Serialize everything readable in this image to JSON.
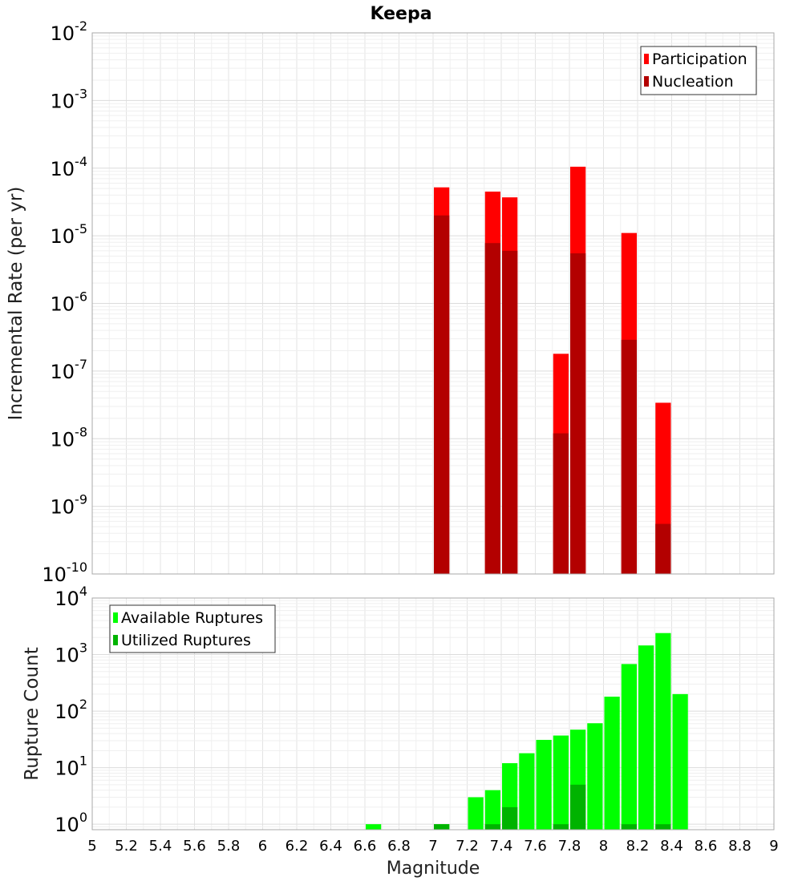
{
  "chart_data": [
    {
      "type": "bar",
      "title": "Keepa",
      "xlabel": "",
      "ylabel": "Incremental Rate (per yr)",
      "yscale": "log",
      "ylim": [
        1e-10,
        0.01
      ],
      "xlim": [
        5,
        9
      ],
      "y_ticks": [
        {
          "base": "10",
          "exp": "-10",
          "value": 1e-10
        },
        {
          "base": "10",
          "exp": "-9",
          "value": 1e-09
        },
        {
          "base": "10",
          "exp": "-8",
          "value": 1e-08
        },
        {
          "base": "10",
          "exp": "-7",
          "value": 1e-07
        },
        {
          "base": "10",
          "exp": "-6",
          "value": 1e-06
        },
        {
          "base": "10",
          "exp": "-5",
          "value": 1e-05
        },
        {
          "base": "10",
          "exp": "-4",
          "value": 0.0001
        },
        {
          "base": "10",
          "exp": "-3",
          "value": 0.001
        },
        {
          "base": "10",
          "exp": "-2",
          "value": 0.01
        }
      ],
      "legend_position": "top-right",
      "grid": true,
      "bin_width": 0.1,
      "series": [
        {
          "name": "Participation",
          "color": "#ff0000",
          "x": [
            7.05,
            7.35,
            7.45,
            7.75,
            7.85,
            8.15,
            8.35
          ],
          "values": [
            5.2e-05,
            4.5e-05,
            3.7e-05,
            1.8e-07,
            0.000105,
            1.1e-05,
            3.4e-08
          ]
        },
        {
          "name": "Nucleation",
          "color": "#b30000",
          "x": [
            7.05,
            7.35,
            7.45,
            7.75,
            7.85,
            8.15,
            8.35
          ],
          "values": [
            2e-05,
            7.8e-06,
            6e-06,
            1.2e-08,
            5.5e-06,
            2.9e-07,
            5.5e-10
          ]
        }
      ]
    },
    {
      "type": "bar",
      "title": "",
      "xlabel": "Magnitude",
      "ylabel": "Rupture Count",
      "yscale": "log",
      "ylim": [
        0.8,
        10000
      ],
      "xlim": [
        5,
        9
      ],
      "x_ticks": [
        "5",
        "5.2",
        "5.4",
        "5.6",
        "5.8",
        "6",
        "6.2",
        "6.4",
        "6.6",
        "6.8",
        "7",
        "7.2",
        "7.4",
        "7.6",
        "7.8",
        "8",
        "8.2",
        "8.4",
        "8.6",
        "8.8",
        "9"
      ],
      "y_ticks": [
        {
          "base": "10",
          "exp": "0",
          "value": 1
        },
        {
          "base": "10",
          "exp": "1",
          "value": 10
        },
        {
          "base": "10",
          "exp": "2",
          "value": 100
        },
        {
          "base": "10",
          "exp": "3",
          "value": 1000
        },
        {
          "base": "10",
          "exp": "4",
          "value": 10000
        }
      ],
      "legend_position": "top-left",
      "grid": true,
      "bin_width": 0.1,
      "series": [
        {
          "name": "Available Ruptures",
          "color": "#00ff00",
          "x": [
            6.65,
            7.05,
            7.25,
            7.35,
            7.45,
            7.55,
            7.65,
            7.75,
            7.85,
            7.95,
            8.05,
            8.15,
            8.25,
            8.35,
            8.45
          ],
          "values": [
            1,
            1,
            3,
            4,
            12,
            18,
            31,
            37,
            47,
            61,
            180,
            680,
            1450,
            2400,
            200
          ]
        },
        {
          "name": "Utilized Ruptures",
          "color": "#00b300",
          "x": [
            7.05,
            7.35,
            7.45,
            7.75,
            7.85,
            8.15,
            8.35
          ],
          "values": [
            1,
            1,
            2,
            1,
            5,
            1,
            1
          ]
        }
      ]
    }
  ]
}
